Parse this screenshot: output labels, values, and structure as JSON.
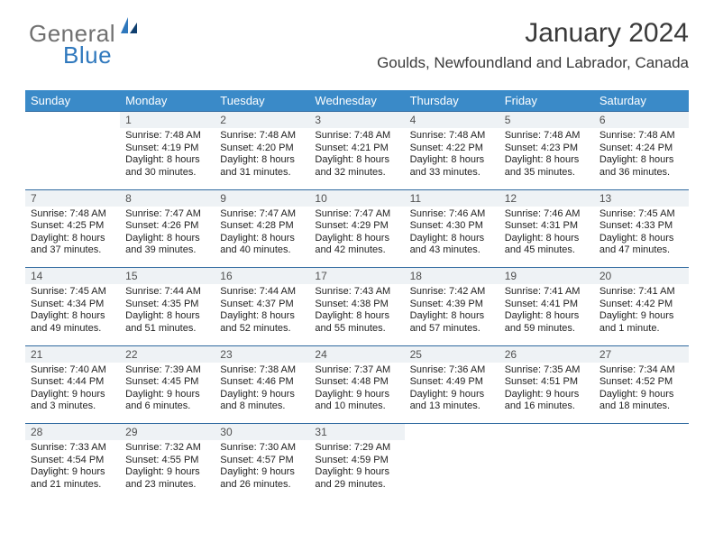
{
  "logo": {
    "text1": "General",
    "text2": "Blue"
  },
  "title": "January 2024",
  "subtitle": "Goulds, Newfoundland and Labrador, Canada",
  "colors": {
    "header_bg": "#3a8ac8",
    "daynum_bg": "#eef2f5",
    "rule": "#2f6aa0",
    "logo_accent": "#2f78bd",
    "logo_gray": "#707070"
  },
  "weekdays": [
    "Sunday",
    "Monday",
    "Tuesday",
    "Wednesday",
    "Thursday",
    "Friday",
    "Saturday"
  ],
  "weeks": [
    [
      null,
      {
        "d": "1",
        "l": [
          "Sunrise: 7:48 AM",
          "Sunset: 4:19 PM",
          "Daylight: 8 hours",
          "and 30 minutes."
        ]
      },
      {
        "d": "2",
        "l": [
          "Sunrise: 7:48 AM",
          "Sunset: 4:20 PM",
          "Daylight: 8 hours",
          "and 31 minutes."
        ]
      },
      {
        "d": "3",
        "l": [
          "Sunrise: 7:48 AM",
          "Sunset: 4:21 PM",
          "Daylight: 8 hours",
          "and 32 minutes."
        ]
      },
      {
        "d": "4",
        "l": [
          "Sunrise: 7:48 AM",
          "Sunset: 4:22 PM",
          "Daylight: 8 hours",
          "and 33 minutes."
        ]
      },
      {
        "d": "5",
        "l": [
          "Sunrise: 7:48 AM",
          "Sunset: 4:23 PM",
          "Daylight: 8 hours",
          "and 35 minutes."
        ]
      },
      {
        "d": "6",
        "l": [
          "Sunrise: 7:48 AM",
          "Sunset: 4:24 PM",
          "Daylight: 8 hours",
          "and 36 minutes."
        ]
      }
    ],
    [
      {
        "d": "7",
        "l": [
          "Sunrise: 7:48 AM",
          "Sunset: 4:25 PM",
          "Daylight: 8 hours",
          "and 37 minutes."
        ]
      },
      {
        "d": "8",
        "l": [
          "Sunrise: 7:47 AM",
          "Sunset: 4:26 PM",
          "Daylight: 8 hours",
          "and 39 minutes."
        ]
      },
      {
        "d": "9",
        "l": [
          "Sunrise: 7:47 AM",
          "Sunset: 4:28 PM",
          "Daylight: 8 hours",
          "and 40 minutes."
        ]
      },
      {
        "d": "10",
        "l": [
          "Sunrise: 7:47 AM",
          "Sunset: 4:29 PM",
          "Daylight: 8 hours",
          "and 42 minutes."
        ]
      },
      {
        "d": "11",
        "l": [
          "Sunrise: 7:46 AM",
          "Sunset: 4:30 PM",
          "Daylight: 8 hours",
          "and 43 minutes."
        ]
      },
      {
        "d": "12",
        "l": [
          "Sunrise: 7:46 AM",
          "Sunset: 4:31 PM",
          "Daylight: 8 hours",
          "and 45 minutes."
        ]
      },
      {
        "d": "13",
        "l": [
          "Sunrise: 7:45 AM",
          "Sunset: 4:33 PM",
          "Daylight: 8 hours",
          "and 47 minutes."
        ]
      }
    ],
    [
      {
        "d": "14",
        "l": [
          "Sunrise: 7:45 AM",
          "Sunset: 4:34 PM",
          "Daylight: 8 hours",
          "and 49 minutes."
        ]
      },
      {
        "d": "15",
        "l": [
          "Sunrise: 7:44 AM",
          "Sunset: 4:35 PM",
          "Daylight: 8 hours",
          "and 51 minutes."
        ]
      },
      {
        "d": "16",
        "l": [
          "Sunrise: 7:44 AM",
          "Sunset: 4:37 PM",
          "Daylight: 8 hours",
          "and 52 minutes."
        ]
      },
      {
        "d": "17",
        "l": [
          "Sunrise: 7:43 AM",
          "Sunset: 4:38 PM",
          "Daylight: 8 hours",
          "and 55 minutes."
        ]
      },
      {
        "d": "18",
        "l": [
          "Sunrise: 7:42 AM",
          "Sunset: 4:39 PM",
          "Daylight: 8 hours",
          "and 57 minutes."
        ]
      },
      {
        "d": "19",
        "l": [
          "Sunrise: 7:41 AM",
          "Sunset: 4:41 PM",
          "Daylight: 8 hours",
          "and 59 minutes."
        ]
      },
      {
        "d": "20",
        "l": [
          "Sunrise: 7:41 AM",
          "Sunset: 4:42 PM",
          "Daylight: 9 hours",
          "and 1 minute."
        ]
      }
    ],
    [
      {
        "d": "21",
        "l": [
          "Sunrise: 7:40 AM",
          "Sunset: 4:44 PM",
          "Daylight: 9 hours",
          "and 3 minutes."
        ]
      },
      {
        "d": "22",
        "l": [
          "Sunrise: 7:39 AM",
          "Sunset: 4:45 PM",
          "Daylight: 9 hours",
          "and 6 minutes."
        ]
      },
      {
        "d": "23",
        "l": [
          "Sunrise: 7:38 AM",
          "Sunset: 4:46 PM",
          "Daylight: 9 hours",
          "and 8 minutes."
        ]
      },
      {
        "d": "24",
        "l": [
          "Sunrise: 7:37 AM",
          "Sunset: 4:48 PM",
          "Daylight: 9 hours",
          "and 10 minutes."
        ]
      },
      {
        "d": "25",
        "l": [
          "Sunrise: 7:36 AM",
          "Sunset: 4:49 PM",
          "Daylight: 9 hours",
          "and 13 minutes."
        ]
      },
      {
        "d": "26",
        "l": [
          "Sunrise: 7:35 AM",
          "Sunset: 4:51 PM",
          "Daylight: 9 hours",
          "and 16 minutes."
        ]
      },
      {
        "d": "27",
        "l": [
          "Sunrise: 7:34 AM",
          "Sunset: 4:52 PM",
          "Daylight: 9 hours",
          "and 18 minutes."
        ]
      }
    ],
    [
      {
        "d": "28",
        "l": [
          "Sunrise: 7:33 AM",
          "Sunset: 4:54 PM",
          "Daylight: 9 hours",
          "and 21 minutes."
        ]
      },
      {
        "d": "29",
        "l": [
          "Sunrise: 7:32 AM",
          "Sunset: 4:55 PM",
          "Daylight: 9 hours",
          "and 23 minutes."
        ]
      },
      {
        "d": "30",
        "l": [
          "Sunrise: 7:30 AM",
          "Sunset: 4:57 PM",
          "Daylight: 9 hours",
          "and 26 minutes."
        ]
      },
      {
        "d": "31",
        "l": [
          "Sunrise: 7:29 AM",
          "Sunset: 4:59 PM",
          "Daylight: 9 hours",
          "and 29 minutes."
        ]
      },
      null,
      null,
      null
    ]
  ]
}
